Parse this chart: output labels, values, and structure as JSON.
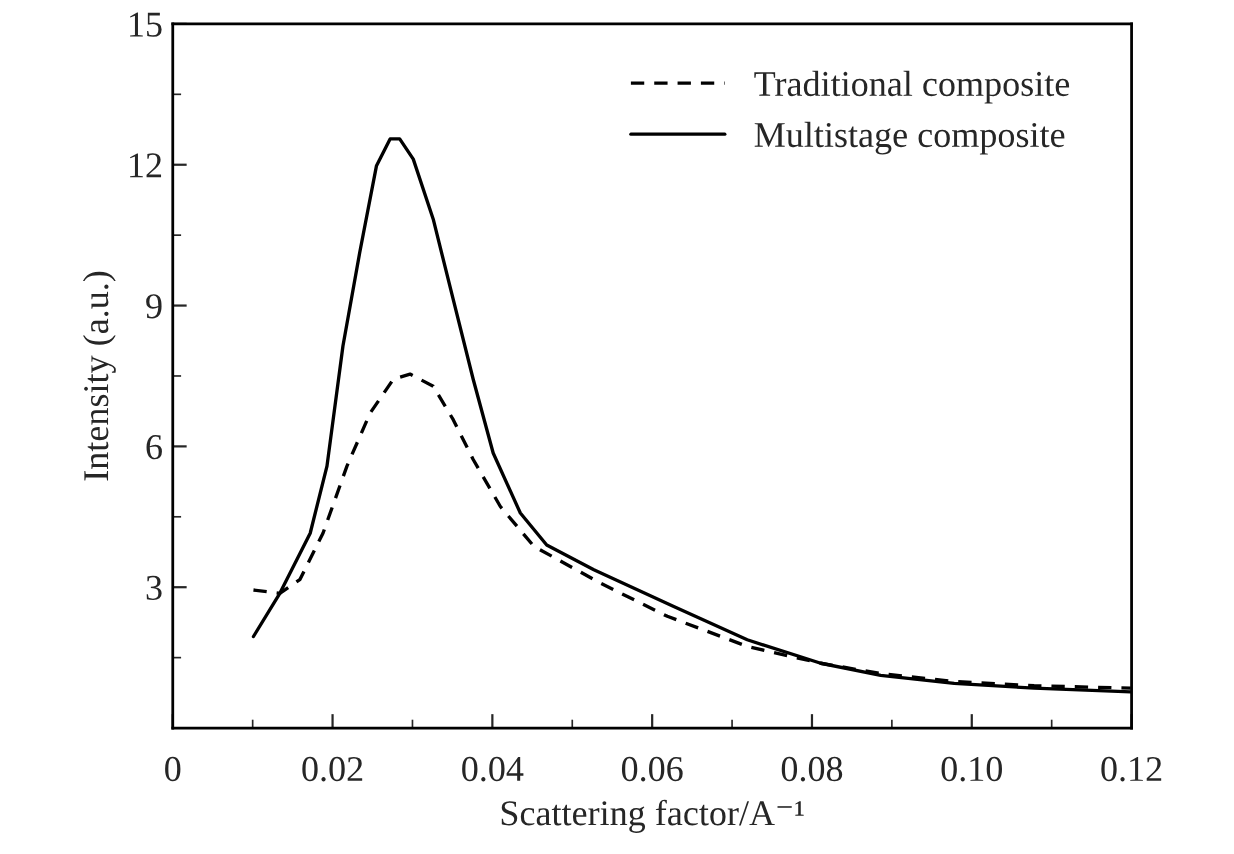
{
  "chart_data": {
    "type": "line",
    "xlabel": "Scattering factor/A⁻¹",
    "ylabel": "Intensity (a.u.)",
    "xlim": [
      0,
      0.12
    ],
    "xticks": [
      {
        "value": 0,
        "label": "0"
      },
      {
        "value": 0.02,
        "label": "0.02"
      },
      {
        "value": 0.04,
        "label": "0.04"
      },
      {
        "value": 0.06,
        "label": "0.06"
      },
      {
        "value": 0.08,
        "label": "0.08"
      },
      {
        "value": 0.1,
        "label": "0.10"
      },
      {
        "value": 0.12,
        "label": "0.12"
      }
    ],
    "ylim": [
      0,
      15
    ],
    "yticks": [
      3,
      6,
      9,
      12,
      15
    ],
    "grid": false,
    "legend": "top right",
    "marker": "none",
    "series": [
      {
        "name": "Traditional composite",
        "color": "#000000",
        "line_style": "dashed",
        "x": [
          0.0101,
          0.0134,
          0.0159,
          0.0188,
          0.0218,
          0.0247,
          0.0276,
          0.0297,
          0.0326,
          0.0351,
          0.0376,
          0.041,
          0.0452,
          0.0535,
          0.0619,
          0.0719,
          0.0811,
          0.0886,
          0.0978,
          0.1078,
          0.1199
        ],
        "values": [
          2.94,
          2.87,
          3.16,
          4.15,
          5.58,
          6.71,
          7.43,
          7.54,
          7.28,
          6.57,
          5.72,
          4.72,
          3.87,
          3.09,
          2.38,
          1.74,
          1.38,
          1.16,
          0.99,
          0.9,
          0.85
        ]
      },
      {
        "name": "Multistage composite",
        "color": "#000000",
        "line_style": "solid",
        "x": [
          0.0101,
          0.0134,
          0.0172,
          0.0193,
          0.0213,
          0.0234,
          0.0255,
          0.0272,
          0.0284,
          0.0301,
          0.0326,
          0.0351,
          0.0376,
          0.0401,
          0.0435,
          0.0468,
          0.0527,
          0.0627,
          0.0719,
          0.0811,
          0.0886,
          0.0978,
          0.1078,
          0.1199
        ],
        "values": [
          1.95,
          2.87,
          4.15,
          5.58,
          8.14,
          10.13,
          11.98,
          12.55,
          12.55,
          12.12,
          10.84,
          9.13,
          7.43,
          5.86,
          4.58,
          3.9,
          3.37,
          2.59,
          1.88,
          1.38,
          1.12,
          0.95,
          0.85,
          0.77
        ]
      }
    ]
  }
}
